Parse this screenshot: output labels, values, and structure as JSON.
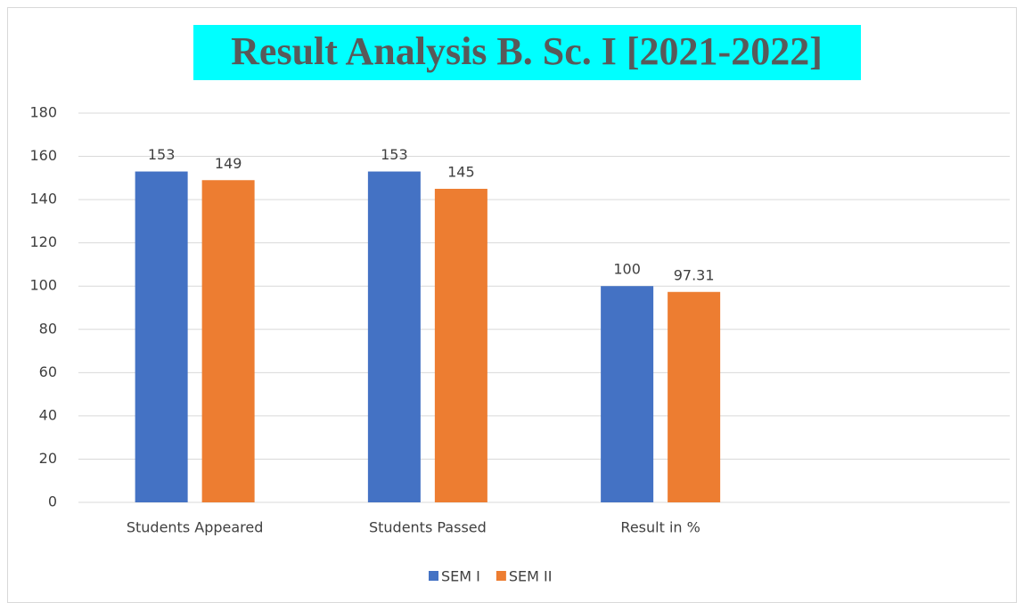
{
  "chart_data": {
    "type": "bar",
    "title": "Result Analysis B. Sc. I [2021-2022]",
    "categories": [
      "Students Appeared",
      "Students Passed",
      "Result in %",
      null
    ],
    "series": [
      {
        "name": "SEM I",
        "color": "#4472c4",
        "values": [
          153,
          153,
          100,
          null
        ]
      },
      {
        "name": "SEM II",
        "color": "#ed7d31",
        "values": [
          149,
          145,
          97.31,
          null
        ]
      }
    ],
    "ylim": [
      0,
      180
    ],
    "yticks": [
      0,
      20,
      40,
      60,
      80,
      100,
      120,
      140,
      160,
      180
    ],
    "grid": true,
    "legend": "bottom",
    "title_background": "#00ffff"
  }
}
